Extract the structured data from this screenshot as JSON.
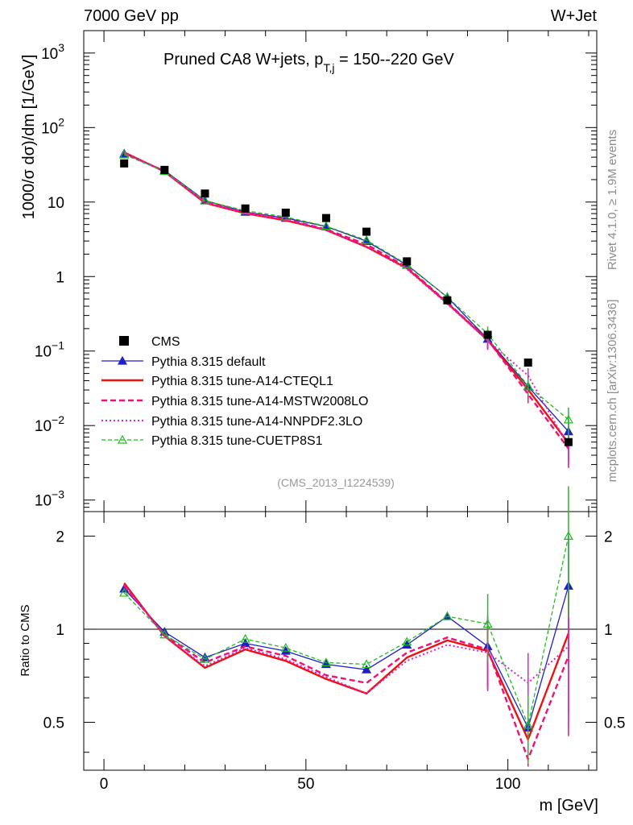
{
  "header": {
    "left": "7000 GeV pp",
    "right": "W+Jet"
  },
  "side_labels": {
    "rivet": "Rivet 4.1.0, ≥ 1.9M events",
    "mcplots": "mcplots.cern.ch [arXiv:1306.3436]"
  },
  "chart_data": {
    "type": "line",
    "title_main": "Pruned CA8 W+jets, p",
    "title_sub": "T,j",
    "title_rest": " = 150--220 GeV",
    "analysis_id": "(CMS_2013_I1224539)",
    "xlabel": "m [GeV]",
    "ylabel": "1000/σ   dσ)/dm [1/GeV]",
    "ratio_ylabel": "Ratio to CMS",
    "xlim": [
      -5,
      122
    ],
    "ylim": [
      0.0007,
      2000
    ],
    "ratio_ylim": [
      0.35,
      2.4
    ],
    "yscale": "log",
    "x_ticks": [
      "0",
      "50",
      "100"
    ],
    "y_ticks": [
      {
        "base": "10",
        "exp": "3"
      },
      {
        "base": "10",
        "exp": "2"
      },
      {
        "base": "10",
        "exp": ""
      },
      {
        "base": "1",
        "exp": ""
      },
      {
        "base": "10",
        "exp": "−1"
      },
      {
        "base": "10",
        "exp": "−2"
      },
      {
        "base": "10",
        "exp": "−3"
      }
    ],
    "ratio_ticks": [
      "0.5",
      "1",
      "2"
    ],
    "x": [
      5,
      15,
      25,
      35,
      45,
      55,
      65,
      75,
      85,
      95,
      105,
      115
    ],
    "data": {
      "name": "CMS",
      "values": [
        33,
        27,
        13,
        8.2,
        7.2,
        6.1,
        4.0,
        1.6,
        0.48,
        0.165,
        0.07,
        0.006
      ]
    },
    "series": [
      {
        "name": "Pythia 8.315 default",
        "color": "#1f1fc8",
        "values": [
          44.6,
          26.5,
          10.5,
          7.35,
          6.1,
          4.7,
          2.98,
          1.43,
          0.53,
          0.145,
          0.0335,
          0.0083
        ],
        "ratio": [
          1.35,
          0.98,
          0.81,
          0.9,
          0.85,
          0.77,
          0.74,
          0.89,
          1.1,
          0.88,
          0.48,
          1.38
        ]
      },
      {
        "name": "Pythia 8.315 tune-A14-CTEQL1",
        "color": "#ee1111",
        "values": [
          46.5,
          25.6,
          9.75,
          7.05,
          5.67,
          4.21,
          2.5,
          1.29,
          0.44,
          0.14,
          0.0305,
          0.0058
        ],
        "ratio": [
          1.41,
          0.95,
          0.75,
          0.86,
          0.79,
          0.69,
          0.62,
          0.81,
          0.92,
          0.85,
          0.44,
          0.97
        ]
      },
      {
        "name": "Pythia 8.315 tune-A14-MSTW2008LO",
        "color": "#ee1177",
        "values": [
          45.5,
          25.9,
          10.1,
          7.2,
          5.9,
          4.3,
          2.7,
          1.34,
          0.45,
          0.142,
          0.0265,
          0.0049
        ],
        "ratio": [
          1.38,
          0.96,
          0.78,
          0.88,
          0.82,
          0.71,
          0.67,
          0.84,
          0.94,
          0.86,
          0.38,
          0.82
        ]
      },
      {
        "name": "Pythia 8.315 tune-A14-NNPDF2.3LO",
        "color": "#dd22cc",
        "values": [
          46.0,
          25.6,
          9.9,
          7.1,
          5.8,
          4.27,
          2.48,
          1.26,
          0.43,
          0.138,
          0.047,
          0.0053
        ],
        "ratio": [
          1.39,
          0.95,
          0.76,
          0.87,
          0.8,
          0.7,
          0.62,
          0.79,
          0.89,
          0.84,
          0.67,
          0.88
        ]
      },
      {
        "name": "Pythia 8.315 tune-CUETP8S1",
        "color": "#22bb22",
        "values": [
          43.2,
          25.9,
          10.4,
          7.65,
          6.3,
          4.75,
          3.08,
          1.46,
          0.53,
          0.171,
          0.034,
          0.012
        ],
        "ratio": [
          1.31,
          0.96,
          0.8,
          0.93,
          0.87,
          0.78,
          0.77,
          0.91,
          1.1,
          1.04,
          0.49,
          2.0
        ]
      }
    ]
  }
}
